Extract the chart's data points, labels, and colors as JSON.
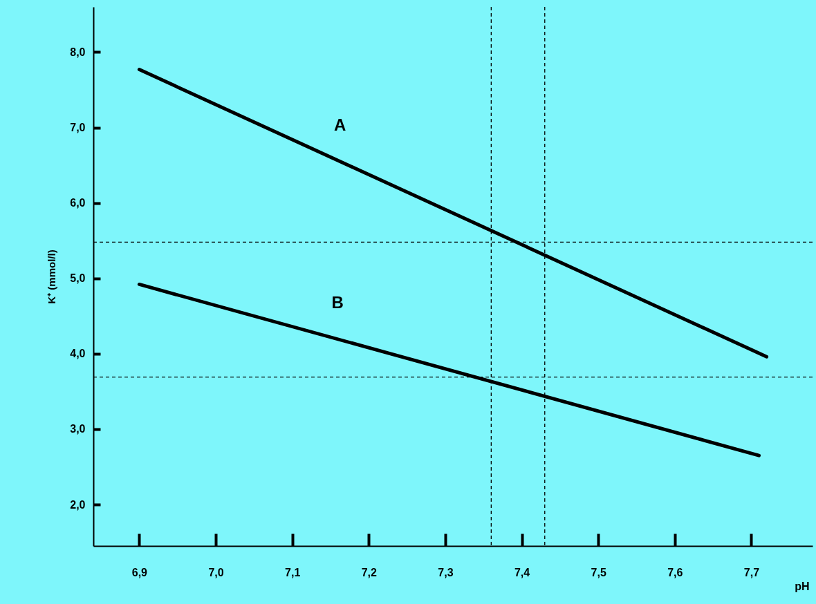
{
  "chart_data": {
    "type": "line",
    "xlabel": "pH",
    "ylabel": "K⁺ (mmol/l)",
    "xlim": [
      6.84,
      7.78
    ],
    "ylim": [
      1.45,
      8.6
    ],
    "xticks": [
      {
        "value": 6.9,
        "label": "6,9"
      },
      {
        "value": 7.0,
        "label": "7,0"
      },
      {
        "value": 7.1,
        "label": "7,1"
      },
      {
        "value": 7.2,
        "label": "7,2"
      },
      {
        "value": 7.3,
        "label": "7,3"
      },
      {
        "value": 7.4,
        "label": "7,4"
      },
      {
        "value": 7.5,
        "label": "7,5"
      },
      {
        "value": 7.6,
        "label": "7,6"
      },
      {
        "value": 7.7,
        "label": "7,7"
      }
    ],
    "yticks": [
      {
        "value": 2,
        "label": "2,0"
      },
      {
        "value": 3,
        "label": "3,0"
      },
      {
        "value": 4,
        "label": "4,0"
      },
      {
        "value": 5,
        "label": "5,0"
      },
      {
        "value": 6,
        "label": "6,0"
      },
      {
        "value": 7,
        "label": "7,0"
      },
      {
        "value": 8,
        "label": "8,0"
      }
    ],
    "series": [
      {
        "name": "A",
        "color": "#000000",
        "x": [
          6.9,
          7.72
        ],
        "values": [
          7.77,
          3.96
        ]
      },
      {
        "name": "B",
        "color": "#000000",
        "x": [
          6.9,
          7.71
        ],
        "values": [
          4.92,
          2.65
        ]
      }
    ],
    "ref_lines": [
      {
        "axis": "y",
        "value": 5.48,
        "color": "#000000",
        "line_style": "dashed"
      },
      {
        "axis": "y",
        "value": 3.69,
        "color": "#000000",
        "line_style": "dashed"
      },
      {
        "axis": "x",
        "value": 7.36,
        "color": "#000000",
        "line_style": "dashed"
      },
      {
        "axis": "x",
        "value": 7.43,
        "color": "#000000",
        "line_style": "dashed"
      }
    ],
    "grid": false,
    "marker": "none",
    "line_style": "solid"
  }
}
